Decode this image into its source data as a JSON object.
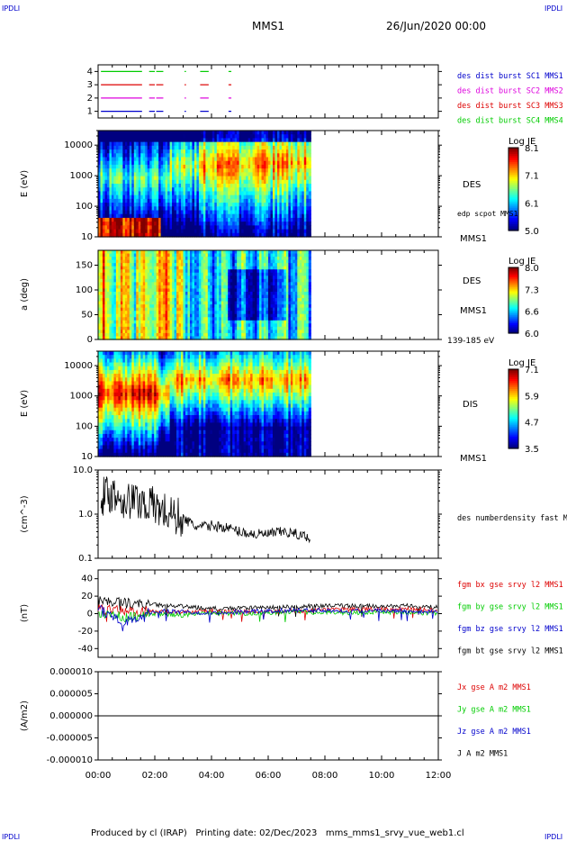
{
  "header": {
    "corner_left": "IPDLI",
    "corner_right": "IPDLI",
    "title": "MMS1",
    "datetime": "26/Jun/2020 00:00",
    "bottom_left": "IPDLI",
    "bottom_right": "IPDLI"
  },
  "footer": {
    "text": "Produced by cl (IRAP)   Printing date: 02/Dec/2023   mms_mms1_srvy_vue_web1.cl"
  },
  "colors": {
    "green": "#00cc00",
    "red": "#dd0000",
    "magenta": "#dd00dd",
    "blue": "#0000cc",
    "black": "#000000"
  },
  "chart_data": [
    {
      "type": "timeline",
      "panel": "burst",
      "ylim": [
        0.5,
        4.5
      ],
      "yticks": [
        "1",
        "2",
        "3",
        "4"
      ],
      "legend": [
        {
          "label": "des dist burst SC1 MMS1",
          "color": "#0000cc"
        },
        {
          "label": "des dist burst SC2 MMS2",
          "color": "#dd00dd"
        },
        {
          "label": "des dist burst SC3 MMS3",
          "color": "#dd0000"
        },
        {
          "label": "des dist burst SC4 MMS4",
          "color": "#00cc00"
        }
      ],
      "segments_hours": [
        [
          0.1,
          1.55
        ],
        [
          1.8,
          2.0
        ],
        [
          2.05,
          2.3
        ],
        [
          3.05,
          3.1
        ],
        [
          3.6,
          3.9
        ],
        [
          4.6,
          4.7
        ]
      ]
    },
    {
      "type": "heatmap",
      "panel": "des-energy",
      "ylabel": "E (eV)",
      "yscale": "log",
      "ylim": [
        10,
        30000
      ],
      "yticks": [
        "10",
        "100",
        "1000",
        "10000"
      ],
      "label": "DES",
      "sublabel": "edp scpot MMS1",
      "spacecraft": "MMS1",
      "colorbar": {
        "title": "Log JE",
        "min": 5.0,
        "max": 8.1,
        "ticks": [
          "8.1",
          "7.1",
          "6.1",
          "5.0"
        ]
      },
      "data_end_hours": 7.5
    },
    {
      "type": "heatmap",
      "panel": "des-pitch",
      "ylabel": "a (deg)",
      "ylim": [
        0,
        180
      ],
      "yticks": [
        "0",
        "50",
        "100",
        "150"
      ],
      "label": "DES",
      "spacecraft": "MMS1",
      "energy_range": "139-185 eV",
      "colorbar": {
        "title": "Log JE",
        "min": 6.0,
        "max": 8.0,
        "ticks": [
          "8.0",
          "7.3",
          "6.6",
          "6.0"
        ]
      },
      "data_end_hours": 7.5
    },
    {
      "type": "heatmap",
      "panel": "dis-energy",
      "ylabel": "E (eV)",
      "yscale": "log",
      "ylim": [
        10,
        30000
      ],
      "yticks": [
        "10",
        "100",
        "1000",
        "10000"
      ],
      "label": "DIS",
      "spacecraft": "MMS1",
      "colorbar": {
        "title": "Log JE",
        "min": 3.5,
        "max": 7.1,
        "ticks": [
          "7.1",
          "5.9",
          "4.7",
          "3.5"
        ]
      },
      "data_end_hours": 7.5
    },
    {
      "type": "line",
      "panel": "density",
      "ylabel": "(cm^-3)",
      "yscale": "log",
      "ylim": [
        0.1,
        10
      ],
      "yticks": [
        "0.1",
        "1.0",
        "10.0"
      ],
      "legend": [
        {
          "label": "des numberdensity fast MMS1",
          "color": "#000000"
        }
      ],
      "x": [
        0.1,
        0.5,
        1.0,
        1.5,
        2.0,
        2.5,
        3.0,
        3.5,
        4.0,
        4.5,
        5.0,
        5.5,
        6.0,
        6.5,
        7.0,
        7.5
      ],
      "y": [
        2.5,
        3.0,
        2.0,
        2.0,
        1.5,
        1.0,
        0.8,
        0.5,
        0.55,
        0.5,
        0.4,
        0.35,
        0.35,
        0.4,
        0.35,
        0.3
      ]
    },
    {
      "type": "line",
      "panel": "fgm",
      "ylabel": "(nT)",
      "ylim": [
        -50,
        50
      ],
      "yticks": [
        "-40",
        "-20",
        "0",
        "20",
        "40"
      ],
      "legend": [
        {
          "label": "fgm bx gse srvy l2 MMS1",
          "color": "#dd0000"
        },
        {
          "label": "fgm by gse srvy l2 MMS1",
          "color": "#00cc00"
        },
        {
          "label": "fgm bz gse srvy l2 MMS1",
          "color": "#0000cc"
        },
        {
          "label": "fgm bt gse srvy l2 MMS1",
          "color": "#000000"
        }
      ],
      "x": [
        0,
        1,
        2,
        3,
        4,
        5,
        6,
        7,
        8,
        9,
        10,
        11,
        12
      ],
      "series": [
        {
          "values": [
            5,
            3,
            2,
            2,
            3,
            2,
            2,
            3,
            4,
            5,
            5,
            5,
            4
          ]
        },
        {
          "values": [
            2,
            -5,
            0,
            -2,
            1,
            0,
            1,
            2,
            1,
            1,
            2,
            1,
            0
          ]
        },
        {
          "values": [
            5,
            -10,
            3,
            2,
            1,
            2,
            3,
            4,
            4,
            3,
            4,
            3,
            2
          ]
        },
        {
          "values": [
            15,
            12,
            10,
            8,
            6,
            6,
            7,
            8,
            9,
            9,
            8,
            9,
            7
          ]
        }
      ]
    },
    {
      "type": "line",
      "panel": "current",
      "ylabel": "(A/m2)",
      "ylim": [
        -1e-05,
        1e-05
      ],
      "yticks": [
        "-0.000010",
        "-0.000005",
        "0.000000",
        "0.000005",
        "0.000010"
      ],
      "legend": [
        {
          "label": "Jx gse A m2 MMS1",
          "color": "#dd0000"
        },
        {
          "label": "Jy gse A m2 MMS1",
          "color": "#00cc00"
        },
        {
          "label": "Jz gse A m2 MMS1",
          "color": "#0000cc"
        },
        {
          "label": "J A m2 MMS1",
          "color": "#000000"
        }
      ],
      "x": [
        0,
        12
      ],
      "y": [
        0.0,
        0.0
      ]
    }
  ],
  "time_axis": {
    "ticks": [
      "00:00",
      "02:00",
      "04:00",
      "06:00",
      "08:00",
      "10:00",
      "12:00"
    ],
    "xlim_hours": [
      0,
      12
    ]
  }
}
